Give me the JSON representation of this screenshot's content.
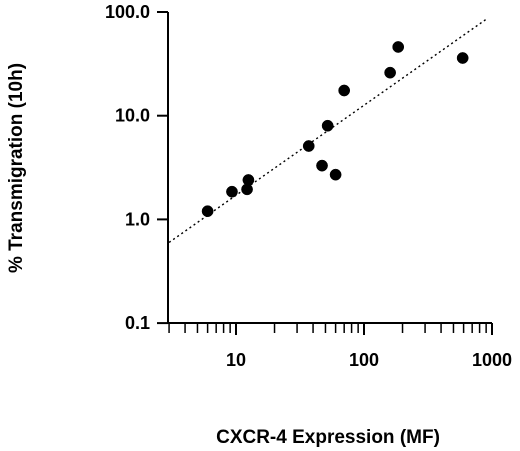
{
  "chart_data": {
    "type": "scatter",
    "title": "",
    "xlabel": "CXCR-4 Expression (MF)",
    "ylabel": "% Transmigration (10h)",
    "x_scale": "log",
    "y_scale": "log",
    "xlim": [
      3,
      1000
    ],
    "ylim": [
      0.1,
      100
    ],
    "x_tick_labels": [
      "10",
      "100",
      "1000"
    ],
    "y_tick_labels": [
      "0.1",
      "1.0",
      "10.0",
      "100.0"
    ],
    "x_ticks": [
      10,
      100,
      1000
    ],
    "y_ticks": [
      0.1,
      1,
      10,
      100
    ],
    "grid": false,
    "legend": "none",
    "points": [
      {
        "x": 6,
        "y": 1.2
      },
      {
        "x": 9.3,
        "y": 1.85
      },
      {
        "x": 12.2,
        "y": 1.95
      },
      {
        "x": 12.5,
        "y": 2.4
      },
      {
        "x": 37,
        "y": 5.1
      },
      {
        "x": 47,
        "y": 3.3
      },
      {
        "x": 52,
        "y": 8.0
      },
      {
        "x": 60,
        "y": 2.7
      },
      {
        "x": 70,
        "y": 17.5
      },
      {
        "x": 160,
        "y": 26
      },
      {
        "x": 185,
        "y": 46
      },
      {
        "x": 590,
        "y": 36
      }
    ],
    "trend_line": {
      "style": "dotted",
      "x": [
        3,
        900
      ],
      "y": [
        0.6,
        85
      ]
    },
    "colors": {
      "points": "#000000",
      "axes": "#000000",
      "background": "#ffffff"
    }
  }
}
